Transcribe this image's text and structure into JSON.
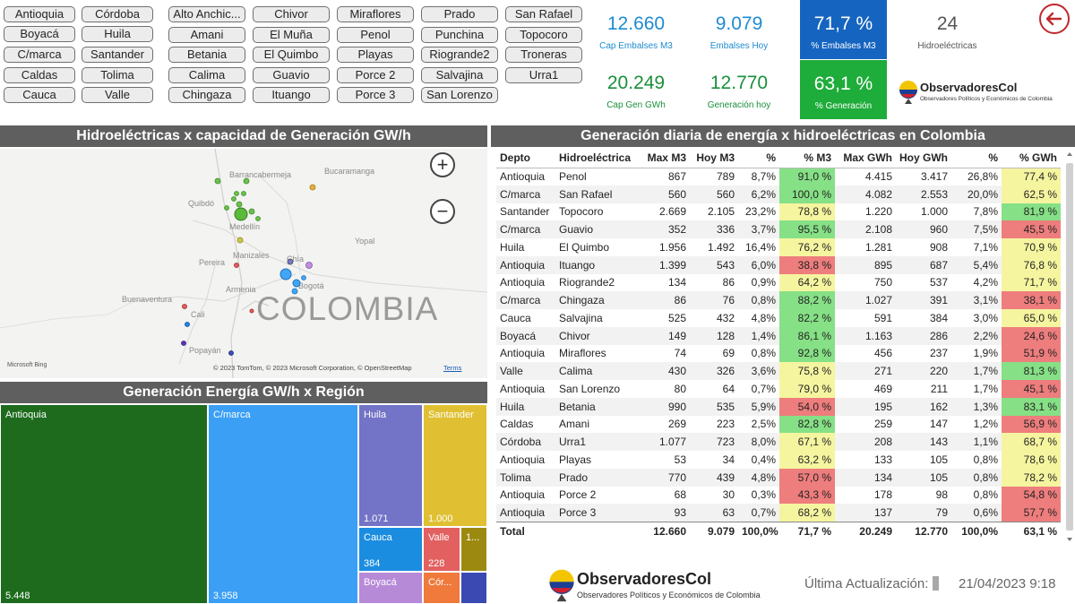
{
  "slicers": {
    "deptos": [
      "Antioquia",
      "Córdoba",
      "Boyacá",
      "Huila",
      "C/marca",
      "Santander",
      "Caldas",
      "Tolima",
      "Cauca",
      "Valle"
    ],
    "hidro": [
      "Alto Anchic...",
      "Chivor",
      "Miraflores",
      "Prado",
      "San Rafael",
      "Amani",
      "El Muña",
      "Penol",
      "Punchina",
      "Topocoro",
      "Betania",
      "El Quimbo",
      "Playas",
      "Riogrande2",
      "Troneras",
      "Calima",
      "Guavio",
      "Porce 2",
      "Salvajina",
      "Urra1",
      "Chingaza",
      "Ituango",
      "Porce 3",
      "San Lorenzo"
    ]
  },
  "kpis": {
    "cap_embalses": {
      "value": "12.660",
      "label": "Cap Embalses M3"
    },
    "embalses_hoy": {
      "value": "9.079",
      "label": "Embalses Hoy"
    },
    "pct_embalses": {
      "value": "71,7 %",
      "label": "% Embalses M3"
    },
    "hidroelectricas": {
      "value": "24",
      "label": "Hidroeléctricas"
    },
    "cap_gen": {
      "value": "20.249",
      "label": "Cap Gen GWh"
    },
    "gen_hoy": {
      "value": "12.770",
      "label": "Generación hoy"
    },
    "pct_gen": {
      "value": "63,1 %",
      "label": "% Generación"
    }
  },
  "logo": {
    "name": "ObservadoresCol",
    "tagline": "Observadores Políticos y Económicos de Colombia"
  },
  "map": {
    "title": "Hidroeléctricas x capacidad de Generación GW/h",
    "country": "COLOMBIA",
    "cities": [
      "Barrancabermeja",
      "Bucaramanga",
      "Quibdó",
      "Medellín",
      "Yopal",
      "Pereira",
      "Manizales",
      "Chía",
      "Armenia",
      "Bogotá",
      "Buenaventura",
      "Cali",
      "Popayán"
    ],
    "credit": "© 2023 TomTom, © 2023 Microsoft Corporation, © OpenStreetMap",
    "terms": "Terms",
    "bing": "Microsoft Bing"
  },
  "treemap": {
    "title": "Generación Energía GW/h x Región",
    "tiles": [
      {
        "name": "Antioquia",
        "value": "5.448",
        "color": "#1e6b1e"
      },
      {
        "name": "C/marca",
        "value": "3.958",
        "color": "#3a9ff5"
      },
      {
        "name": "Huila",
        "value": "1.071",
        "color": "#7373c7"
      },
      {
        "name": "Santander",
        "value": "1.000",
        "color": "#e0c032"
      },
      {
        "name": "Cauca",
        "value": "384",
        "color": "#1b8de0"
      },
      {
        "name": "Valle",
        "value": "228",
        "color": "#e26060"
      },
      {
        "name": "1...",
        "value": "",
        "color": "#9c8a10"
      },
      {
        "name": "Boyacá",
        "value": "",
        "color": "#b78ad8"
      },
      {
        "name": "Cór...",
        "value": "",
        "color": "#ef7a3c"
      },
      {
        "name": "",
        "value": "",
        "color": "#3a4ab2"
      }
    ]
  },
  "table": {
    "title": "Generación diaria de energía x hidroeléctricas en Colombia",
    "headers": [
      "Depto",
      "Hidroeléctrica",
      "Max M3",
      "Hoy M3",
      "%",
      "% M3",
      "Max GWh",
      "Hoy GWh",
      "%",
      "% GWh"
    ],
    "rows": [
      [
        "Antioquia",
        "Penol",
        "867",
        "789",
        "8,7%",
        "91,0 %",
        "4.415",
        "3.417",
        "26,8%",
        "77,4 %"
      ],
      [
        "C/marca",
        "San Rafael",
        "560",
        "560",
        "6,2%",
        "100,0 %",
        "4.082",
        "2.553",
        "20,0%",
        "62,5 %"
      ],
      [
        "Santander",
        "Topocoro",
        "2.669",
        "2.105",
        "23,2%",
        "78,8 %",
        "1.220",
        "1.000",
        "7,8%",
        "81,9 %"
      ],
      [
        "C/marca",
        "Guavio",
        "352",
        "336",
        "3,7%",
        "95,5 %",
        "2.108",
        "960",
        "7,5%",
        "45,5 %"
      ],
      [
        "Huila",
        "El Quimbo",
        "1.956",
        "1.492",
        "16,4%",
        "76,2 %",
        "1.281",
        "908",
        "7,1%",
        "70,9 %"
      ],
      [
        "Antioquia",
        "Ituango",
        "1.399",
        "543",
        "6,0%",
        "38,8 %",
        "895",
        "687",
        "5,4%",
        "76,8 %"
      ],
      [
        "Antioquia",
        "Riogrande2",
        "134",
        "86",
        "0,9%",
        "64,2 %",
        "750",
        "537",
        "4,2%",
        "71,7 %"
      ],
      [
        "C/marca",
        "Chingaza",
        "86",
        "76",
        "0,8%",
        "88,2 %",
        "1.027",
        "391",
        "3,1%",
        "38,1 %"
      ],
      [
        "Cauca",
        "Salvajina",
        "525",
        "432",
        "4,8%",
        "82,2 %",
        "591",
        "384",
        "3,0%",
        "65,0 %"
      ],
      [
        "Boyacá",
        "Chivor",
        "149",
        "128",
        "1,4%",
        "86,1 %",
        "1.163",
        "286",
        "2,2%",
        "24,6 %"
      ],
      [
        "Antioquia",
        "Miraflores",
        "74",
        "69",
        "0,8%",
        "92,8 %",
        "456",
        "237",
        "1,9%",
        "51,9 %"
      ],
      [
        "Valle",
        "Calima",
        "430",
        "326",
        "3,6%",
        "75,8 %",
        "271",
        "220",
        "1,7%",
        "81,3 %"
      ],
      [
        "Antioquia",
        "San Lorenzo",
        "80",
        "64",
        "0,7%",
        "79,0 %",
        "469",
        "211",
        "1,7%",
        "45,1 %"
      ],
      [
        "Huila",
        "Betania",
        "990",
        "535",
        "5,9%",
        "54,0 %",
        "195",
        "162",
        "1,3%",
        "83,1 %"
      ],
      [
        "Caldas",
        "Amani",
        "269",
        "223",
        "2,5%",
        "82,8 %",
        "259",
        "147",
        "1,2%",
        "56,9 %"
      ],
      [
        "Córdoba",
        "Urra1",
        "1.077",
        "723",
        "8,0%",
        "67,1 %",
        "208",
        "143",
        "1,1%",
        "68,7 %"
      ],
      [
        "Antioquia",
        "Playas",
        "53",
        "34",
        "0,4%",
        "63,2 %",
        "133",
        "105",
        "0,8%",
        "78,6 %"
      ],
      [
        "Tolima",
        "Prado",
        "770",
        "439",
        "4,8%",
        "57,0 %",
        "134",
        "105",
        "0,8%",
        "78,2 %"
      ],
      [
        "Antioquia",
        "Porce 2",
        "68",
        "30",
        "0,3%",
        "43,3 %",
        "178",
        "98",
        "0,8%",
        "54,8 %"
      ],
      [
        "Antioquia",
        "Porce 3",
        "93",
        "63",
        "0,7%",
        "68,2 %",
        "137",
        "79",
        "0,6%",
        "57,7 %"
      ]
    ],
    "pct_m3_colors": [
      "g",
      "g",
      "y",
      "g",
      "y",
      "r",
      "y",
      "g",
      "g",
      "g",
      "g",
      "y",
      "y",
      "r",
      "g",
      "y",
      "y",
      "r",
      "r",
      "y"
    ],
    "pct_gwh_colors": [
      "y",
      "y",
      "g",
      "r",
      "y",
      "y",
      "y",
      "r",
      "y",
      "r",
      "r",
      "g",
      "r",
      "g",
      "r",
      "y",
      "y",
      "y",
      "r",
      "r"
    ],
    "total": [
      "Total",
      "",
      "12.660",
      "9.079",
      "100,0%",
      "71,7 %",
      "20.249",
      "12.770",
      "100,0%",
      "63,1 %"
    ]
  },
  "footer": {
    "update_label": "Última Actualización:",
    "update_date": "21/04/2023 9:18"
  },
  "colors": {
    "kpi_blue": "#1f8bd2",
    "kpi_green": "#1a8f3c",
    "box_blue": "#1565c0",
    "box_green": "#1eac3a",
    "header_gray": "#5f5f5f"
  }
}
